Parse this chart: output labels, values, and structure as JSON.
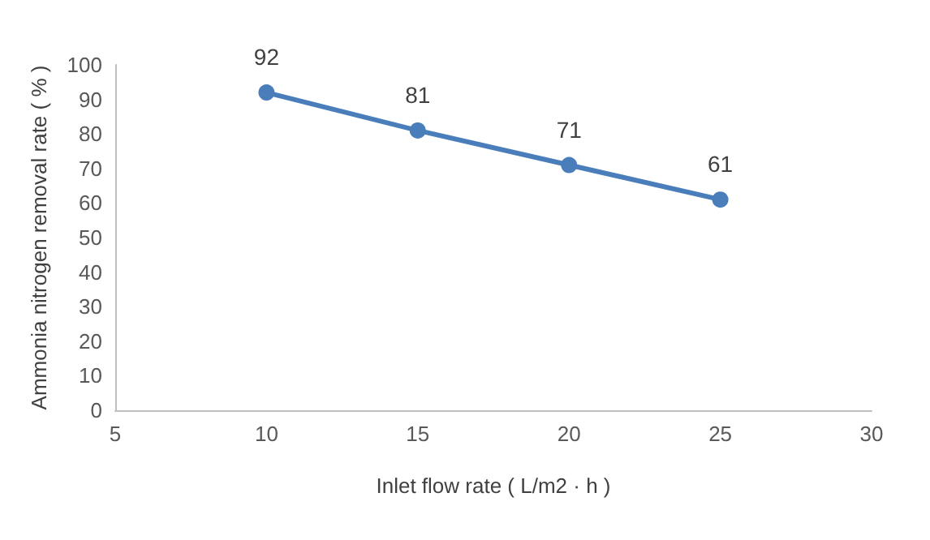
{
  "chart_data": {
    "type": "line",
    "xlabel": "Inlet flow rate ( L/m2 · h )",
    "ylabel": "Ammonia nitrogen removal rate ( % )",
    "x": [
      10,
      15,
      20,
      25
    ],
    "series": [
      {
        "color": "#4a7ebb",
        "values": [
          92,
          81,
          71,
          61
        ]
      }
    ],
    "xlim": [
      5,
      30
    ],
    "xticks": [
      5,
      10,
      15,
      20,
      25,
      30
    ],
    "ylim": [
      0,
      100
    ],
    "yticks": [
      0,
      10,
      20,
      30,
      40,
      50,
      60,
      70,
      80,
      90,
      100
    ],
    "grid": false,
    "marker": "circle",
    "line_style": "solid",
    "data_labels": true
  }
}
